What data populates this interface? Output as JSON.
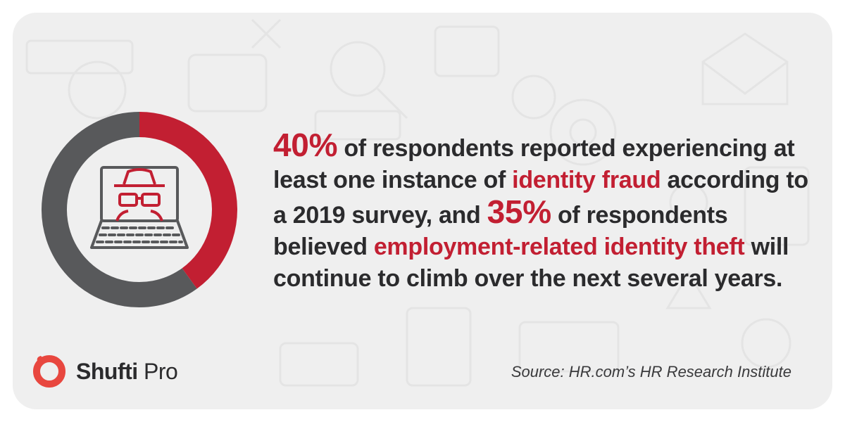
{
  "colors": {
    "accent": "#c21f32",
    "dark": "#58595b",
    "text": "#2b2b2d",
    "background": "#efefef"
  },
  "chart_data": {
    "type": "pie",
    "values": [
      40,
      60
    ],
    "colors": [
      "#c21f32",
      "#58595b"
    ]
  },
  "statement": {
    "stat1": "40%",
    "part1": " of respondents reported experiencing at least one instance of ",
    "highlight1": "identity fraud",
    "part2": " according to a 2019 survey, and ",
    "stat2": "35%",
    "part3": " of respondents believed ",
    "highlight2": "employment-related identity theft",
    "part4": " will continue to climb over the next several years."
  },
  "brand": {
    "name_bold": "Shufti",
    "name_light": " Pro"
  },
  "source": "Source: HR.com’s HR Research Institute",
  "icons": {
    "center": "hacker-laptop-icon",
    "logo": "shufti-pro-logo-icon"
  }
}
